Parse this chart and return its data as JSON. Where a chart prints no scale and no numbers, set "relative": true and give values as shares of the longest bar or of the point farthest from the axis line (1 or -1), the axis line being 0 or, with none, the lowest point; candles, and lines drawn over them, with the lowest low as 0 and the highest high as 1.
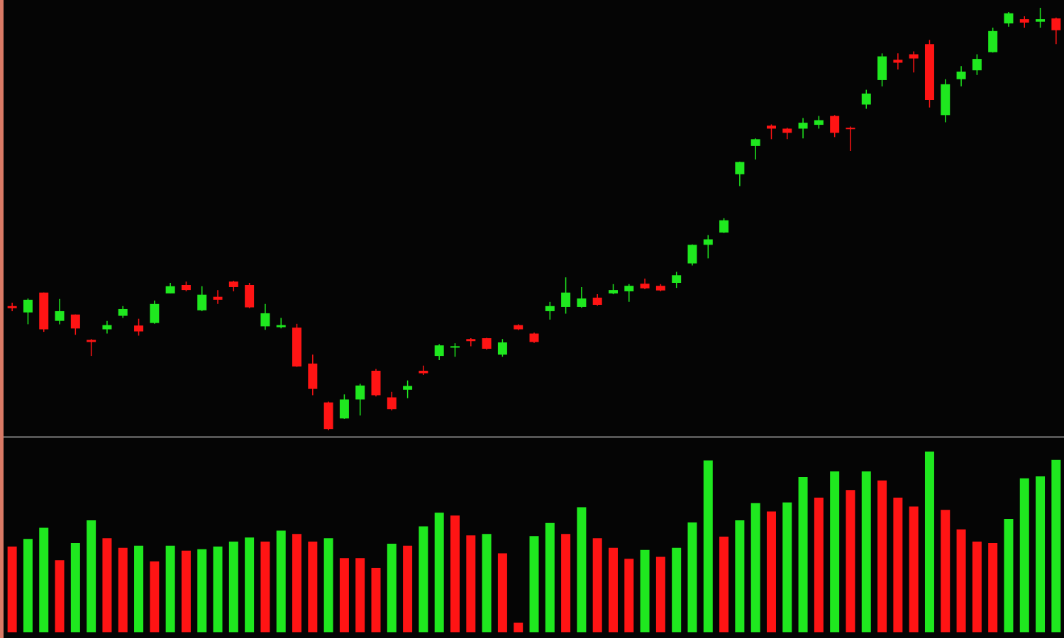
{
  "chart_data": [
    {
      "type": "candlestick",
      "relative": true,
      "grid": false,
      "categories": [
        null,
        null,
        null,
        null,
        null,
        null,
        null,
        null,
        null,
        null,
        null,
        null,
        null,
        null,
        null,
        null,
        null,
        null,
        null,
        null,
        null,
        null,
        null,
        null,
        null,
        null,
        null,
        null,
        null,
        null,
        null,
        null,
        null,
        null,
        null,
        null,
        null,
        null,
        null,
        null,
        null,
        null,
        null,
        null,
        null,
        null,
        null,
        null,
        null,
        null,
        null,
        null,
        null,
        null,
        null,
        null,
        null,
        null,
        null,
        null,
        null,
        null,
        null,
        null,
        null,
        null,
        null
      ],
      "ohlc": [
        [
          0.294,
          0.302,
          0.282,
          0.289
        ],
        [
          0.279,
          0.312,
          0.251,
          0.309
        ],
        [
          0.326,
          0.326,
          0.233,
          0.239
        ],
        [
          0.259,
          0.311,
          0.251,
          0.282
        ],
        [
          0.274,
          0.274,
          0.226,
          0.241
        ],
        [
          0.214,
          0.216,
          0.176,
          0.209
        ],
        [
          0.239,
          0.259,
          0.229,
          0.249
        ],
        [
          0.271,
          0.294,
          0.266,
          0.287
        ],
        [
          0.248,
          0.264,
          0.224,
          0.234
        ],
        [
          0.254,
          0.307,
          0.252,
          0.299
        ],
        [
          0.324,
          0.349,
          0.324,
          0.341
        ],
        [
          0.344,
          0.352,
          0.329,
          0.332
        ],
        [
          0.284,
          0.341,
          0.282,
          0.321
        ],
        [
          0.316,
          0.332,
          0.299,
          0.309
        ],
        [
          0.352,
          0.354,
          0.329,
          0.339
        ],
        [
          0.344,
          0.349,
          0.289,
          0.291
        ],
        [
          0.246,
          0.299,
          0.238,
          0.277
        ],
        [
          0.244,
          0.266,
          0.241,
          0.249
        ],
        [
          0.243,
          0.252,
          0.15,
          0.151
        ],
        [
          0.158,
          0.179,
          0.083,
          0.098
        ],
        [
          0.066,
          0.068,
          0,
          0.003
        ],
        [
          0.028,
          0.085,
          0.027,
          0.073
        ],
        [
          0.073,
          0.11,
          0.035,
          0.106
        ],
        [
          0.141,
          0.145,
          0.08,
          0.083
        ],
        [
          0.078,
          0.091,
          0.047,
          0.05
        ],
        [
          0.096,
          0.118,
          0.076,
          0.105
        ],
        [
          0.141,
          0.153,
          0.131,
          0.135
        ],
        [
          0.176,
          0.204,
          0.166,
          0.201
        ],
        [
          0.198,
          0.206,
          0.174,
          0.199
        ],
        [
          0.216,
          0.218,
          0.199,
          0.211
        ],
        [
          0.218,
          0.219,
          0.191,
          0.193
        ],
        [
          0.179,
          0.216,
          0.174,
          0.208
        ],
        [
          0.249,
          0.251,
          0.237,
          0.239
        ],
        [
          0.229,
          0.231,
          0.207,
          0.209
        ],
        [
          0.282,
          0.304,
          0.262,
          0.294
        ],
        [
          0.292,
          0.362,
          0.276,
          0.326
        ],
        [
          0.292,
          0.339,
          0.29,
          0.312
        ],
        [
          0.314,
          0.322,
          0.295,
          0.297
        ],
        [
          0.324,
          0.346,
          0.322,
          0.332
        ],
        [
          0.329,
          0.346,
          0.304,
          0.342
        ],
        [
          0.347,
          0.359,
          0.334,
          0.336
        ],
        [
          0.342,
          0.346,
          0.329,
          0.331
        ],
        [
          0.349,
          0.375,
          0.337,
          0.367
        ],
        [
          0.395,
          0.44,
          0.39,
          0.439
        ],
        [
          0.439,
          0.462,
          0.407,
          0.452
        ],
        [
          0.468,
          0.502,
          0.467,
          0.497
        ],
        [
          0.606,
          0.636,
          0.578,
          0.635
        ],
        [
          0.673,
          0.691,
          0.641,
          0.689
        ],
        [
          0.721,
          0.724,
          0.689,
          0.714
        ],
        [
          0.714,
          0.716,
          0.689,
          0.704
        ],
        [
          0.714,
          0.739,
          0.691,
          0.728
        ],
        [
          0.723,
          0.744,
          0.714,
          0.734
        ],
        [
          0.744,
          0.746,
          0.694,
          0.704
        ],
        [
          0.716,
          0.719,
          0.661,
          0.713
        ],
        [
          0.771,
          0.806,
          0.761,
          0.797
        ],
        [
          0.829,
          0.892,
          0.814,
          0.885
        ],
        [
          0.877,
          0.892,
          0.854,
          0.87
        ],
        [
          0.89,
          0.897,
          0.847,
          0.88
        ],
        [
          0.914,
          0.924,
          0.764,
          0.782
        ],
        [
          0.746,
          0.831,
          0.729,
          0.819
        ],
        [
          0.831,
          0.862,
          0.814,
          0.849
        ],
        [
          0.852,
          0.89,
          0.841,
          0.879
        ],
        [
          0.895,
          0.953,
          0.894,
          0.945
        ],
        [
          0.963,
          0.99,
          0.955,
          0.987
        ],
        [
          0.973,
          0.98,
          0.953,
          0.965
        ],
        [
          0.967,
          1,
          0.953,
          0.973
        ],
        [
          0.975,
          0.977,
          0.914,
          0.947
        ]
      ],
      "colors": [
        "#ff1414",
        "#1fe81f",
        "#ff1414",
        "#1fe81f",
        "#ff1414",
        "#ff1414",
        "#1fe81f",
        "#1fe81f",
        "#ff1414",
        "#1fe81f",
        "#1fe81f",
        "#ff1414",
        "#1fe81f",
        "#ff1414",
        "#ff1414",
        "#ff1414",
        "#1fe81f",
        "#1fe81f",
        "#ff1414",
        "#ff1414",
        "#ff1414",
        "#1fe81f",
        "#1fe81f",
        "#ff1414",
        "#ff1414",
        "#1fe81f",
        "#ff1414",
        "#1fe81f",
        "#1fe81f",
        "#ff1414",
        "#ff1414",
        "#1fe81f",
        "#ff1414",
        "#ff1414",
        "#1fe81f",
        "#1fe81f",
        "#1fe81f",
        "#ff1414",
        "#1fe81f",
        "#1fe81f",
        "#ff1414",
        "#ff1414",
        "#1fe81f",
        "#1fe81f",
        "#1fe81f",
        "#1fe81f",
        "#1fe81f",
        "#1fe81f",
        "#ff1414",
        "#ff1414",
        "#1fe81f",
        "#1fe81f",
        "#ff1414",
        "#ff1414",
        "#1fe81f",
        "#1fe81f",
        "#ff1414",
        "#ff1414",
        "#ff1414",
        "#1fe81f",
        "#1fe81f",
        "#1fe81f",
        "#1fe81f",
        "#1fe81f",
        "#ff1414",
        "#1fe81f",
        "#ff1414"
      ]
    },
    {
      "type": "bar",
      "relative": true,
      "grid": false,
      "categories": [
        null,
        null,
        null,
        null,
        null,
        null,
        null,
        null,
        null,
        null,
        null,
        null,
        null,
        null,
        null,
        null,
        null,
        null,
        null,
        null,
        null,
        null,
        null,
        null,
        null,
        null,
        null,
        null,
        null,
        null,
        null,
        null,
        null,
        null,
        null,
        null,
        null,
        null,
        null,
        null,
        null,
        null,
        null,
        null,
        null,
        null,
        null,
        null,
        null,
        null,
        null,
        null,
        null,
        null,
        null,
        null,
        null,
        null,
        null,
        null,
        null,
        null,
        null,
        null,
        null,
        null,
        null
      ],
      "values": [
        0.475,
        0.517,
        0.578,
        0.399,
        0.494,
        0.62,
        0.521,
        0.468,
        0.479,
        0.392,
        0.479,
        0.452,
        0.46,
        0.475,
        0.502,
        0.525,
        0.502,
        0.563,
        0.544,
        0.502,
        0.521,
        0.411,
        0.411,
        0.357,
        0.49,
        0.479,
        0.586,
        0.662,
        0.646,
        0.536,
        0.544,
        0.437,
        0.053,
        0.532,
        0.605,
        0.544,
        0.692,
        0.521,
        0.468,
        0.407,
        0.456,
        0.418,
        0.468,
        0.608,
        0.951,
        0.529,
        0.62,
        0.715,
        0.669,
        0.719,
        0.859,
        0.745,
        0.89,
        0.787,
        0.89,
        0.84,
        0.745,
        0.696,
        1,
        0.677,
        0.57,
        0.502,
        0.494,
        0.627,
        0.852,
        0.863,
        0.954
      ],
      "colors": [
        "#ff1414",
        "#1fe81f",
        "#1fe81f",
        "#ff1414",
        "#1fe81f",
        "#1fe81f",
        "#ff1414",
        "#ff1414",
        "#1fe81f",
        "#ff1414",
        "#1fe81f",
        "#ff1414",
        "#1fe81f",
        "#1fe81f",
        "#1fe81f",
        "#1fe81f",
        "#ff1414",
        "#1fe81f",
        "#ff1414",
        "#ff1414",
        "#1fe81f",
        "#ff1414",
        "#ff1414",
        "#ff1414",
        "#1fe81f",
        "#ff1414",
        "#1fe81f",
        "#1fe81f",
        "#ff1414",
        "#ff1414",
        "#1fe81f",
        "#ff1414",
        "#ff1414",
        "#1fe81f",
        "#1fe81f",
        "#ff1414",
        "#1fe81f",
        "#ff1414",
        "#ff1414",
        "#ff1414",
        "#1fe81f",
        "#ff1414",
        "#1fe81f",
        "#1fe81f",
        "#1fe81f",
        "#ff1414",
        "#1fe81f",
        "#1fe81f",
        "#ff1414",
        "#1fe81f",
        "#1fe81f",
        "#ff1414",
        "#1fe81f",
        "#ff1414",
        "#1fe81f",
        "#ff1414",
        "#ff1414",
        "#ff1414",
        "#1fe81f",
        "#ff1414",
        "#ff1414",
        "#ff1414",
        "#ff1414",
        "#1fe81f",
        "#1fe81f",
        "#1fe81f",
        "#1fe81f"
      ]
    }
  ]
}
